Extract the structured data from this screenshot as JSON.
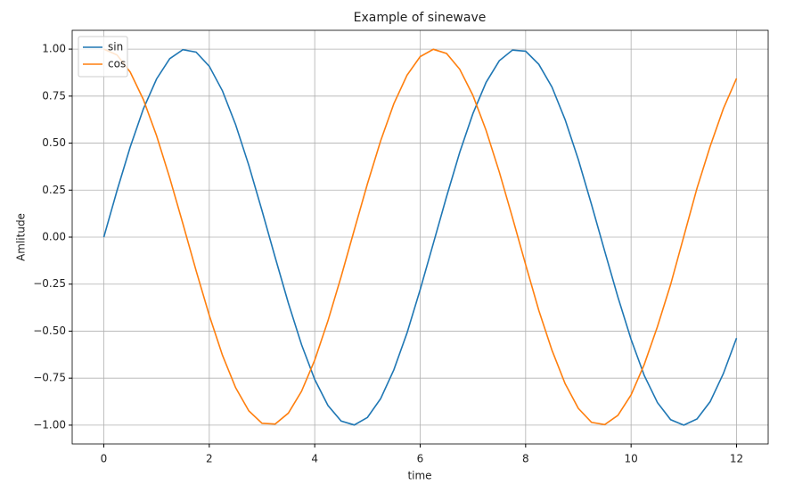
{
  "chart_data": {
    "type": "line",
    "title": "Example of sinewave",
    "x_label": "time",
    "y_label": "Amlitude",
    "x": [
      0,
      0.25,
      0.5,
      0.75,
      1,
      1.25,
      1.5,
      1.75,
      2,
      2.25,
      2.5,
      2.75,
      3,
      3.25,
      3.5,
      3.75,
      4,
      4.25,
      4.5,
      4.75,
      5,
      5.25,
      5.5,
      5.75,
      6,
      6.25,
      6.5,
      6.75,
      7,
      7.25,
      7.5,
      7.75,
      8,
      8.25,
      8.5,
      8.75,
      9,
      9.25,
      9.5,
      9.75,
      10,
      10.25,
      10.5,
      10.75,
      11,
      11.25,
      11.5,
      11.75,
      12
    ],
    "series": [
      {
        "name": "sin",
        "color": "#1f77b4",
        "values": [
          0,
          0.247,
          0.479,
          0.682,
          0.841,
          0.949,
          0.997,
          0.984,
          0.909,
          0.778,
          0.598,
          0.382,
          0.141,
          -0.108,
          -0.351,
          -0.572,
          -0.757,
          -0.895,
          -0.978,
          -0.999,
          -0.959,
          -0.859,
          -0.706,
          -0.51,
          -0.279,
          -0.033,
          0.215,
          0.451,
          0.657,
          0.823,
          0.938,
          0.995,
          0.989,
          0.919,
          0.798,
          0.624,
          0.412,
          0.173,
          -0.075,
          -0.319,
          -0.544,
          -0.736,
          -0.88,
          -0.971,
          -1,
          -0.967,
          -0.875,
          -0.726,
          -0.537
        ]
      },
      {
        "name": "cos",
        "color": "#ff7f0e",
        "values": [
          1,
          0.969,
          0.878,
          0.732,
          0.54,
          0.315,
          0.071,
          -0.178,
          -0.416,
          -0.628,
          -0.801,
          -0.924,
          -0.99,
          -0.994,
          -0.936,
          -0.82,
          -0.654,
          -0.446,
          -0.211,
          0.038,
          0.284,
          0.512,
          0.709,
          0.861,
          0.96,
          0.999,
          0.977,
          0.893,
          0.754,
          0.568,
          0.347,
          0.104,
          -0.146,
          -0.39,
          -0.602,
          -0.78,
          -0.911,
          -0.985,
          -0.997,
          -0.948,
          -0.839,
          -0.677,
          -0.476,
          -0.252,
          0.004,
          0.26,
          0.483,
          0.683,
          0.844
        ]
      }
    ],
    "xlim": [
      -0.6,
      12.6
    ],
    "ylim": [
      -1.1,
      1.1
    ],
    "xticks": [
      0,
      2,
      4,
      6,
      8,
      10,
      12
    ],
    "yticks": [
      {
        "value": -1,
        "label": "−1.00"
      },
      {
        "value": -0.75,
        "label": "−0.75"
      },
      {
        "value": -0.5,
        "label": "−0.50"
      },
      {
        "value": -0.25,
        "label": "−0.25"
      },
      {
        "value": 0,
        "label": "0.00"
      },
      {
        "value": 0.25,
        "label": "0.25"
      },
      {
        "value": 0.5,
        "label": "0.50"
      },
      {
        "value": 0.75,
        "label": "0.75"
      },
      {
        "value": 1,
        "label": "1.00"
      }
    ],
    "grid": true,
    "legend": "upper left"
  }
}
